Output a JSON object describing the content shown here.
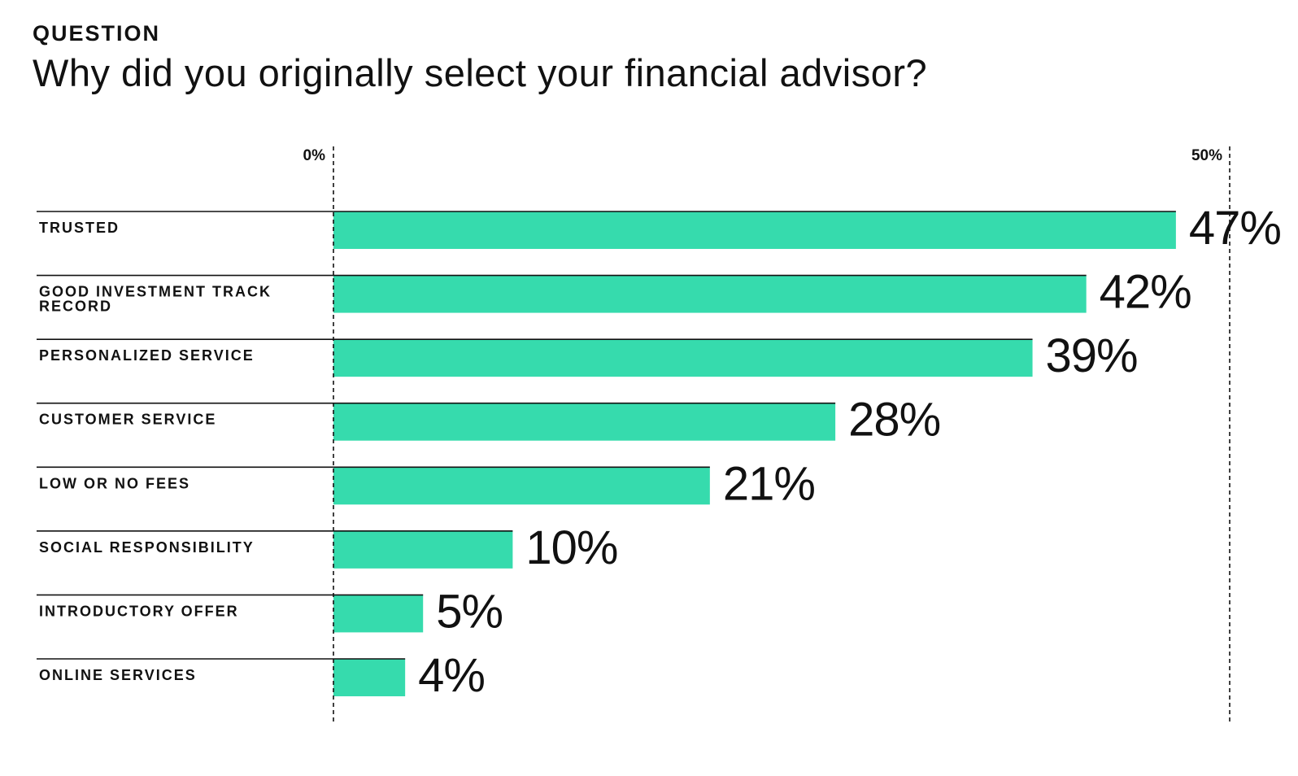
{
  "header": {
    "eyebrow": "QUESTION",
    "title": "Why did you originally select your financial advisor?"
  },
  "colors": {
    "bar": "#36dbad",
    "text": "#111111",
    "rule": "#111111"
  },
  "chart_data": {
    "type": "bar",
    "orientation": "horizontal",
    "title": "Why did you originally select your financial advisor?",
    "xlim": [
      0,
      50
    ],
    "ticks": [
      "0%",
      "50%"
    ],
    "categories": [
      [
        "TRUSTED"
      ],
      [
        "GOOD INVESTMENT TRACK",
        "RECORD"
      ],
      [
        "PERSONALIZED SERVICE"
      ],
      [
        "CUSTOMER SERVICE"
      ],
      [
        "LOW OR NO FEES"
      ],
      [
        "SOCIAL RESPONSIBILITY"
      ],
      [
        "INTRODUCTORY OFFER"
      ],
      [
        "ONLINE SERVICES"
      ]
    ],
    "values": [
      47,
      42,
      39,
      28,
      21,
      10,
      5,
      4
    ],
    "value_labels": [
      "47%",
      "42%",
      "39%",
      "28%",
      "21%",
      "10%",
      "5%",
      "4%"
    ],
    "grid": false,
    "legend": "none"
  }
}
